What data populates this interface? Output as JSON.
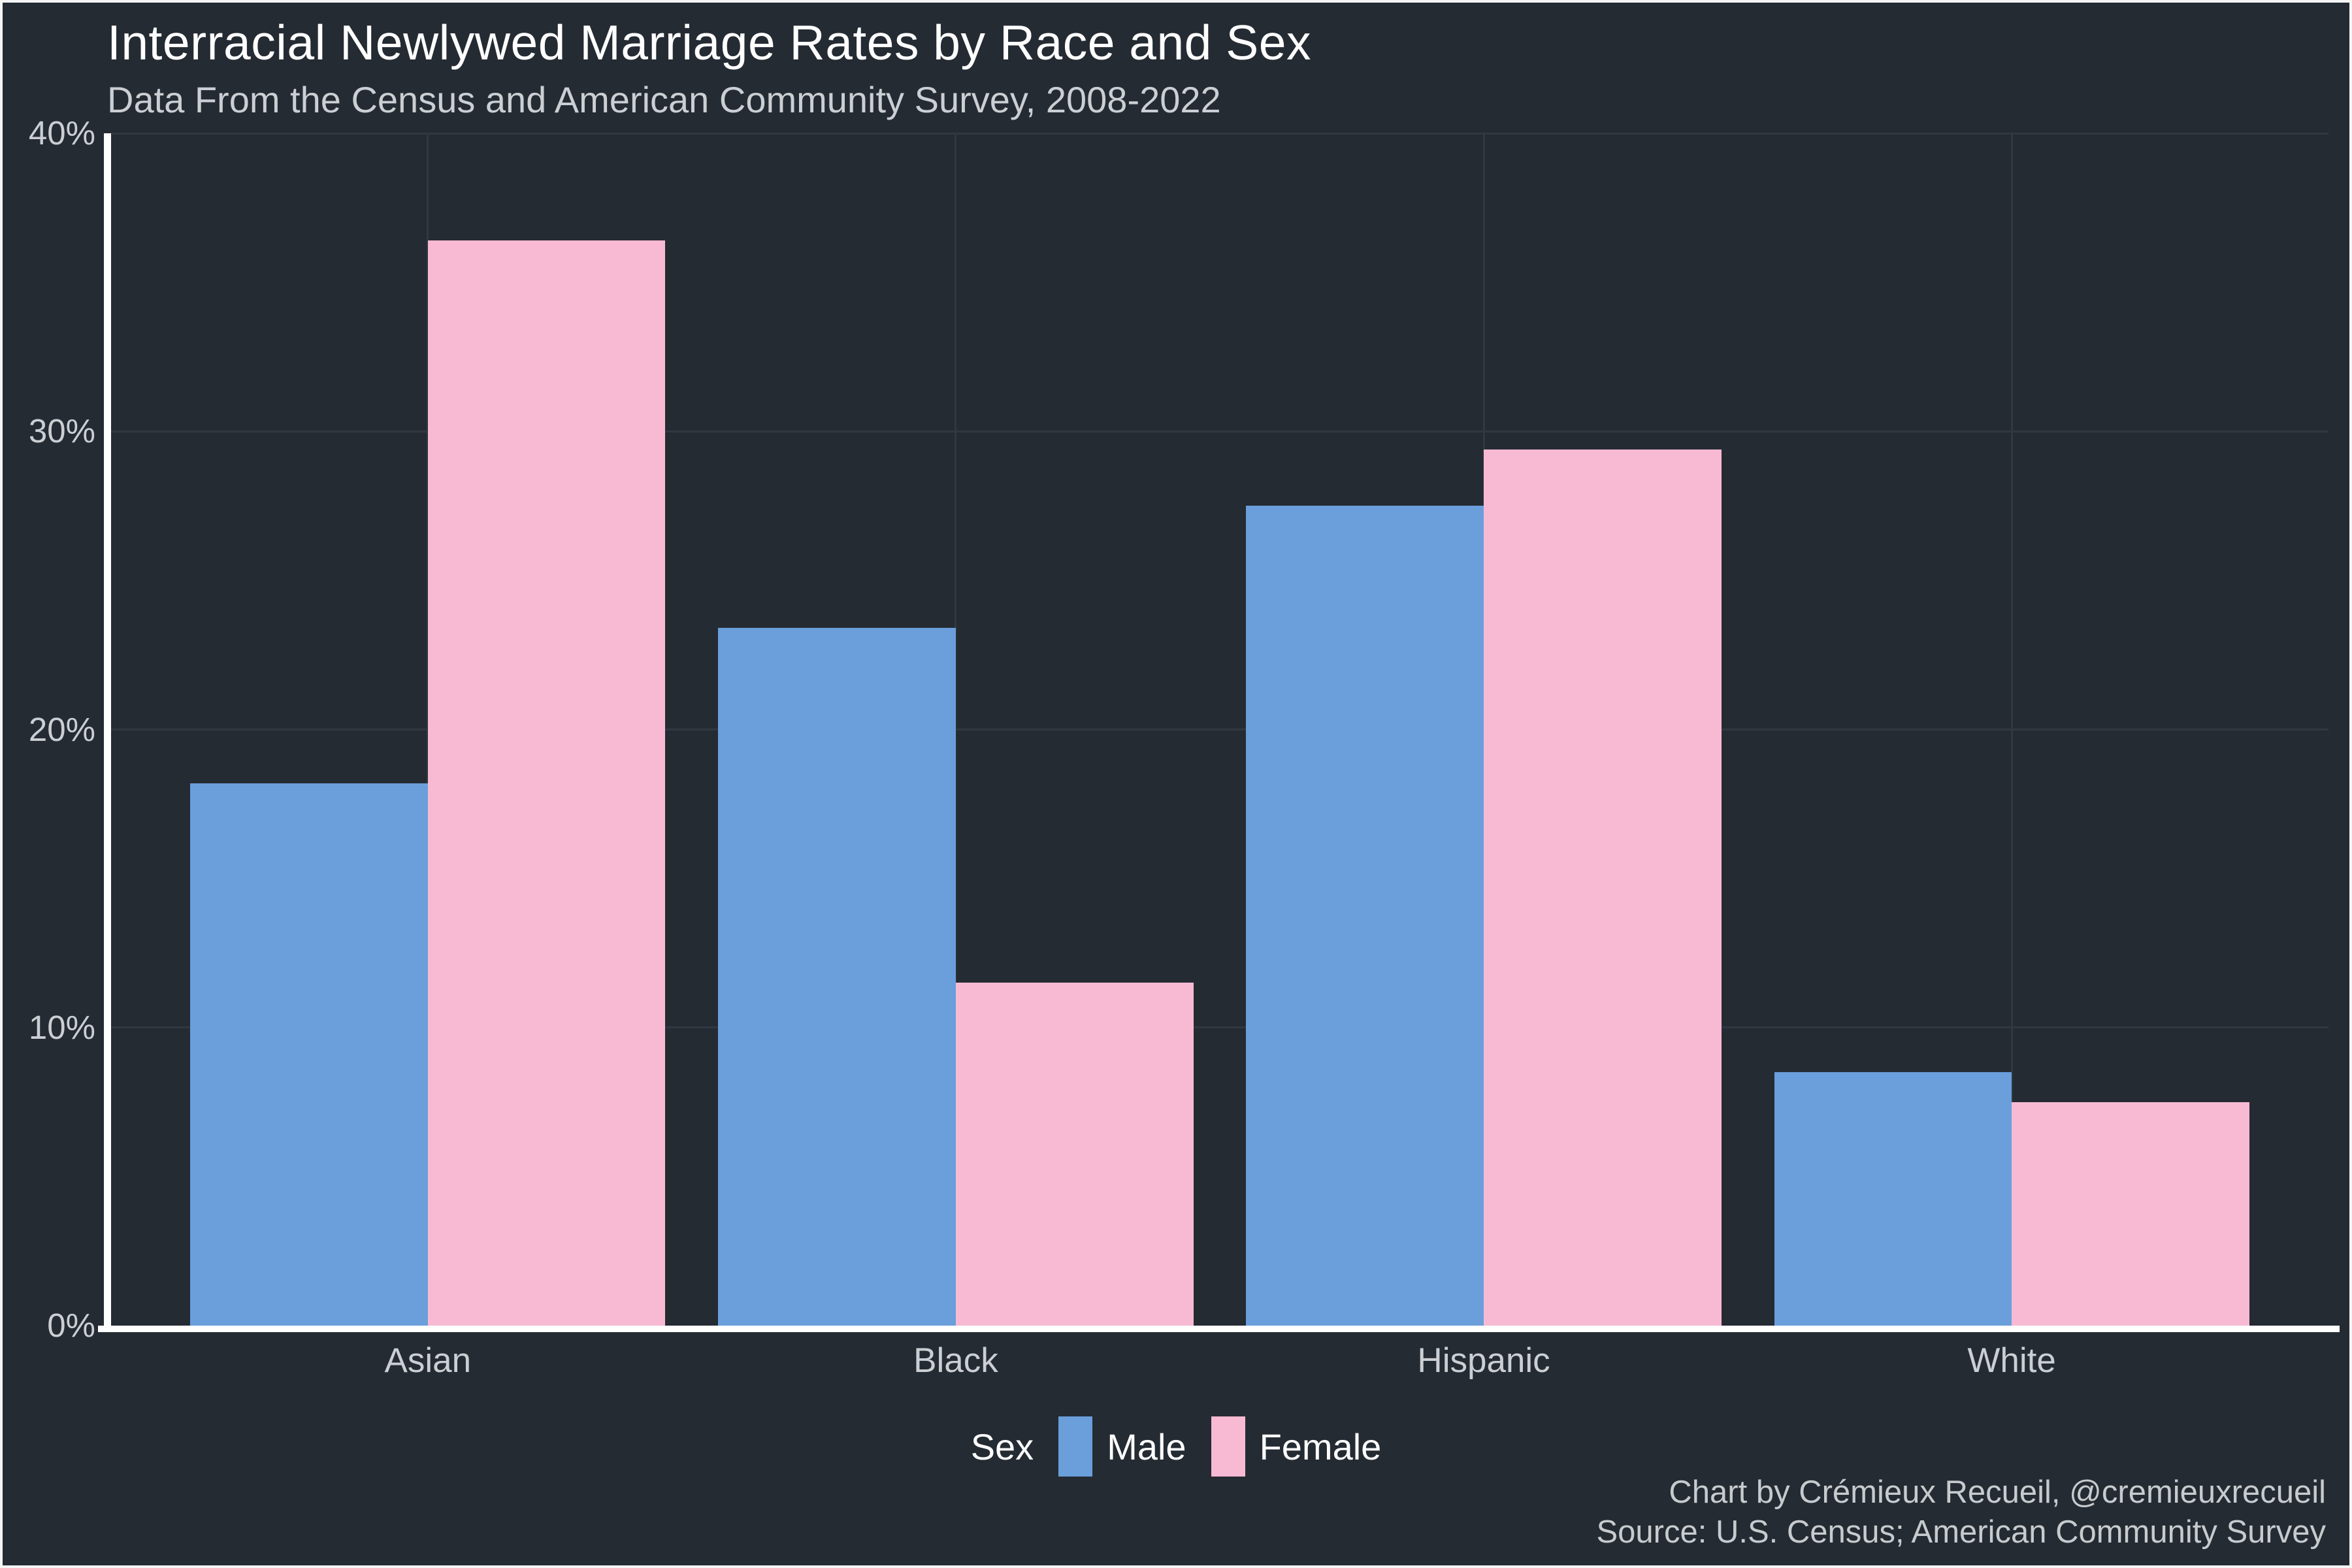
{
  "page": {
    "background": "#252B33",
    "frame_border": "#F5F5F5"
  },
  "header": {
    "title": "Interracial Newlywed Marriage Rates by Race and Sex",
    "subtitle": "Data From the Census and American Community Survey, 2008-2022"
  },
  "chart_data": {
    "type": "bar",
    "title": "Interracial Newlywed Marriage Rates by Race and Sex",
    "subtitle": "Data From the Census and American Community Survey, 2008-2022",
    "categories": [
      "Asian",
      "Black",
      "Hispanic",
      "White"
    ],
    "series": [
      {
        "name": "Male",
        "color": "#6A9FDB",
        "values": [
          18.2,
          23.4,
          27.5,
          8.5
        ]
      },
      {
        "name": "Female",
        "color": "#F8BAD3",
        "values": [
          36.4,
          11.5,
          29.4,
          7.5
        ]
      }
    ],
    "xlabel": "",
    "ylabel": "",
    "ylim": [
      0,
      40
    ],
    "yticks": [
      {
        "value": 0,
        "label": "0%"
      },
      {
        "value": 10,
        "label": "10%"
      },
      {
        "value": 20,
        "label": "20%"
      },
      {
        "value": 30,
        "label": "30%"
      },
      {
        "value": 40,
        "label": "40%"
      }
    ],
    "bar_unit_width": 0.9,
    "grid": "faint major horizontal lines and vertical line at each category center",
    "legend_title": "Sex",
    "legend_position": "bottom-center",
    "axis_color": "#FFFFFF",
    "grid_color": "#303842"
  },
  "legend": {
    "title": "Sex",
    "items": [
      {
        "label": "Male",
        "color": "#6A9FDB"
      },
      {
        "label": "Female",
        "color": "#F8BAD3"
      }
    ]
  },
  "footer": {
    "credit_line1": "Chart by Crémieux Recueil, @cremieuxrecueil",
    "credit_line2": "Source: U.S. Census; American Community Survey"
  },
  "colors": {
    "background": "#252B33",
    "grid": "#303842",
    "axis": "#FFFFFF",
    "title_text": "#FFFFFF",
    "muted_text": "#CBCFD3",
    "credit_text": "#C7CBCE",
    "male_blue": "#6A9FDB",
    "female_pink": "#F8BAD3"
  }
}
